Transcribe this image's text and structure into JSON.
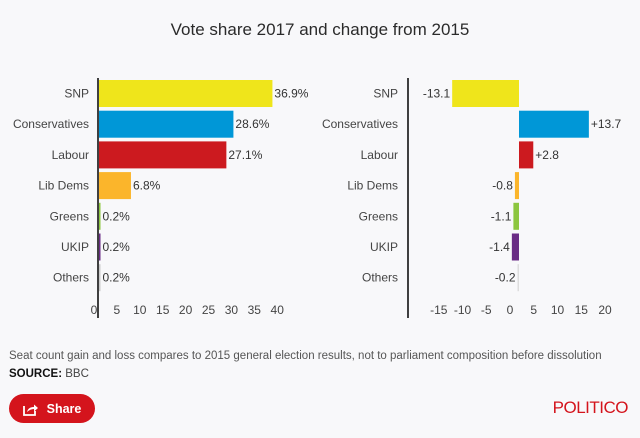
{
  "title": "Vote share 2017 and change from 2015",
  "chart_data": [
    {
      "type": "bar",
      "orientation": "horizontal",
      "title": "Vote share 2017",
      "categories": [
        "SNP",
        "Conservatives",
        "Labour",
        "Lib Dems",
        "Greens",
        "UKIP",
        "Others"
      ],
      "values": [
        36.9,
        28.6,
        27.1,
        6.8,
        0.2,
        0.2,
        0.2
      ],
      "value_labels": [
        "36.9%",
        "28.6%",
        "27.1%",
        "6.8%",
        "0.2%",
        "0.2%",
        "0.2%"
      ],
      "colors": [
        "#efe51b",
        "#0097d7",
        "#cc1a1f",
        "#fbb52b",
        "#8cc63f",
        "#6a2c85",
        "#cccccc"
      ],
      "xlim": [
        0,
        40
      ],
      "xticks": [
        0,
        5,
        10,
        15,
        20,
        25,
        30,
        35,
        40
      ],
      "xlabel": "",
      "ylabel": "",
      "grid": false
    },
    {
      "type": "bar",
      "orientation": "horizontal",
      "title": "Change from 2015",
      "categories": [
        "SNP",
        "Conservatives",
        "Labour",
        "Lib Dems",
        "Greens",
        "UKIP",
        "Others"
      ],
      "values": [
        -13.1,
        13.7,
        2.8,
        -0.8,
        -1.1,
        -1.4,
        -0.2
      ],
      "value_labels": [
        "-13.1",
        "+13.7",
        "+2.8",
        "-0.8",
        "-1.1",
        "-1.4",
        "-0.2"
      ],
      "colors": [
        "#efe51b",
        "#0097d7",
        "#cc1a1f",
        "#fbb52b",
        "#8cc63f",
        "#6a2c85",
        "#dddddd"
      ],
      "xlim": [
        -15,
        20
      ],
      "xticks": [
        -15,
        -10,
        -5,
        0,
        5,
        10,
        15,
        20
      ],
      "xlabel": "",
      "ylabel": "",
      "grid": false
    }
  ],
  "footer": {
    "note": "Seat count gain and loss compares to 2015 general election results, not to parliament composition before dissolution",
    "source_label": "SOURCE:",
    "source_value": "BBC",
    "share_label": "Share",
    "share_icon": "share-icon",
    "brand": "POLITICO"
  }
}
